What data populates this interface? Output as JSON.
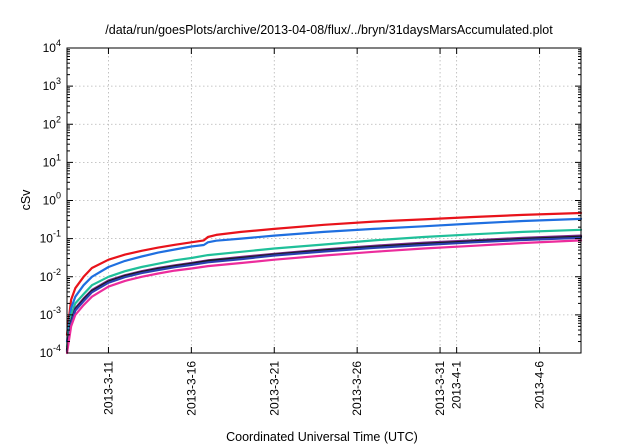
{
  "chart_data": {
    "type": "line",
    "title": "/data/run/goesPlots/archive/2013-04-08/flux/../bryn/31daysMarsAccumulated.plot",
    "xlabel": "Coordinated Universal Time (UTC)",
    "ylabel": "cSv",
    "yscale": "log",
    "ylim": [
      0.0001,
      10000
    ],
    "xlim": [
      "2013-03-08T12:00",
      "2013-04-08T12:00"
    ],
    "grid": true,
    "legend": "none",
    "y_ticks": [
      {
        "base": "10",
        "exp": "-4",
        "value": 0.0001
      },
      {
        "base": "10",
        "exp": "-3",
        "value": 0.001
      },
      {
        "base": "10",
        "exp": "-2",
        "value": 0.01
      },
      {
        "base": "10",
        "exp": "-1",
        "value": 0.1
      },
      {
        "base": "10",
        "exp": "0",
        "value": 1
      },
      {
        "base": "10",
        "exp": "1",
        "value": 10
      },
      {
        "base": "10",
        "exp": "2",
        "value": 100
      },
      {
        "base": "10",
        "exp": "3",
        "value": 1000
      },
      {
        "base": "10",
        "exp": "4",
        "value": 10000
      }
    ],
    "x_ticks": [
      {
        "label": "2013-3-11",
        "date": "2013-03-11"
      },
      {
        "label": "2013-3-16",
        "date": "2013-03-16"
      },
      {
        "label": "2013-3-21",
        "date": "2013-03-21"
      },
      {
        "label": "2013-3-26",
        "date": "2013-03-26"
      },
      {
        "label": "2013-3-31",
        "date": "2013-03-31"
      },
      {
        "label": "2013-4-1",
        "date": "2013-04-01"
      },
      {
        "label": "2013-4-6",
        "date": "2013-04-06"
      }
    ],
    "series": [
      {
        "color": "#e8131b",
        "points": [
          [
            "2013-03-08T12:00",
            0.0003
          ],
          [
            "2013-03-08T18:00",
            0.0025
          ],
          [
            "2013-03-09T00:00",
            0.005
          ],
          [
            "2013-03-09T12:00",
            0.01
          ],
          [
            "2013-03-10T00:00",
            0.017
          ],
          [
            "2013-03-11T00:00",
            0.028
          ],
          [
            "2013-03-12T00:00",
            0.038
          ],
          [
            "2013-03-13T00:00",
            0.048
          ],
          [
            "2013-03-14T00:00",
            0.058
          ],
          [
            "2013-03-15T00:00",
            0.069
          ],
          [
            "2013-03-16T00:00",
            0.08
          ],
          [
            "2013-03-16T18:00",
            0.09
          ],
          [
            "2013-03-17T00:00",
            0.11
          ],
          [
            "2013-03-17T12:00",
            0.125
          ],
          [
            "2013-03-19T00:00",
            0.15
          ],
          [
            "2013-03-21T00:00",
            0.18
          ],
          [
            "2013-03-24T00:00",
            0.23
          ],
          [
            "2013-03-27T00:00",
            0.28
          ],
          [
            "2013-03-30T00:00",
            0.32
          ],
          [
            "2013-04-02T00:00",
            0.37
          ],
          [
            "2013-04-05T00:00",
            0.42
          ],
          [
            "2013-04-08T12:00",
            0.47
          ]
        ]
      },
      {
        "color": "#1f6fe0",
        "points": [
          [
            "2013-03-08T12:00",
            0.0002
          ],
          [
            "2013-03-08T18:00",
            0.0015
          ],
          [
            "2013-03-09T00:00",
            0.003
          ],
          [
            "2013-03-09T12:00",
            0.006
          ],
          [
            "2013-03-10T00:00",
            0.01
          ],
          [
            "2013-03-11T00:00",
            0.018
          ],
          [
            "2013-03-12T00:00",
            0.026
          ],
          [
            "2013-03-13T00:00",
            0.034
          ],
          [
            "2013-03-14T00:00",
            0.043
          ],
          [
            "2013-03-15T00:00",
            0.052
          ],
          [
            "2013-03-16T00:00",
            0.062
          ],
          [
            "2013-03-16T18:00",
            0.068
          ],
          [
            "2013-03-17T00:00",
            0.08
          ],
          [
            "2013-03-17T12:00",
            0.088
          ],
          [
            "2013-03-19T00:00",
            0.1
          ],
          [
            "2013-03-21T00:00",
            0.12
          ],
          [
            "2013-03-24T00:00",
            0.15
          ],
          [
            "2013-03-27T00:00",
            0.18
          ],
          [
            "2013-03-30T00:00",
            0.21
          ],
          [
            "2013-04-02T00:00",
            0.25
          ],
          [
            "2013-04-05T00:00",
            0.29
          ],
          [
            "2013-04-08T12:00",
            0.33
          ]
        ]
      },
      {
        "color": "#20c09a",
        "points": [
          [
            "2013-03-08T12:00",
            0.00015
          ],
          [
            "2013-03-08T18:00",
            0.001
          ],
          [
            "2013-03-09T00:00",
            0.002
          ],
          [
            "2013-03-09T12:00",
            0.0035
          ],
          [
            "2013-03-10T00:00",
            0.006
          ],
          [
            "2013-03-11T00:00",
            0.01
          ],
          [
            "2013-03-12T00:00",
            0.014
          ],
          [
            "2013-03-13T00:00",
            0.018
          ],
          [
            "2013-03-14T00:00",
            0.022
          ],
          [
            "2013-03-15T00:00",
            0.027
          ],
          [
            "2013-03-16T00:00",
            0.031
          ],
          [
            "2013-03-17T00:00",
            0.037
          ],
          [
            "2013-03-19T00:00",
            0.045
          ],
          [
            "2013-03-21T00:00",
            0.055
          ],
          [
            "2013-03-24T00:00",
            0.07
          ],
          [
            "2013-03-27T00:00",
            0.09
          ],
          [
            "2013-03-30T00:00",
            0.11
          ],
          [
            "2013-04-02T00:00",
            0.13
          ],
          [
            "2013-04-05T00:00",
            0.15
          ],
          [
            "2013-04-08T12:00",
            0.17
          ]
        ]
      },
      {
        "color": "#7a2a8c",
        "points": [
          [
            "2013-03-08T12:00",
            0.00012
          ],
          [
            "2013-03-08T18:00",
            0.0007
          ],
          [
            "2013-03-09T00:00",
            0.0015
          ],
          [
            "2013-03-09T12:00",
            0.0027
          ],
          [
            "2013-03-10T00:00",
            0.0045
          ],
          [
            "2013-03-11T00:00",
            0.008
          ],
          [
            "2013-03-12T00:00",
            0.011
          ],
          [
            "2013-03-13T00:00",
            0.014
          ],
          [
            "2013-03-14T00:00",
            0.017
          ],
          [
            "2013-03-15T00:00",
            0.02
          ],
          [
            "2013-03-16T00:00",
            0.023
          ],
          [
            "2013-03-17T00:00",
            0.027
          ],
          [
            "2013-03-19T00:00",
            0.033
          ],
          [
            "2013-03-21T00:00",
            0.04
          ],
          [
            "2013-03-24T00:00",
            0.052
          ],
          [
            "2013-03-27T00:00",
            0.065
          ],
          [
            "2013-03-30T00:00",
            0.078
          ],
          [
            "2013-04-02T00:00",
            0.09
          ],
          [
            "2013-04-05T00:00",
            0.105
          ],
          [
            "2013-04-08T12:00",
            0.12
          ]
        ]
      },
      {
        "color": "#1a1a1a",
        "points": [
          [
            "2013-03-08T12:00",
            0.00012
          ],
          [
            "2013-03-08T18:00",
            0.00065
          ],
          [
            "2013-03-09T00:00",
            0.0014
          ],
          [
            "2013-03-09T12:00",
            0.0025
          ],
          [
            "2013-03-10T00:00",
            0.0042
          ],
          [
            "2013-03-11T00:00",
            0.0075
          ],
          [
            "2013-03-12T00:00",
            0.0105
          ],
          [
            "2013-03-13T00:00",
            0.0133
          ],
          [
            "2013-03-14T00:00",
            0.0162
          ],
          [
            "2013-03-15T00:00",
            0.019
          ],
          [
            "2013-03-16T00:00",
            0.022
          ],
          [
            "2013-03-17T00:00",
            0.026
          ],
          [
            "2013-03-19T00:00",
            0.031
          ],
          [
            "2013-03-21T00:00",
            0.038
          ],
          [
            "2013-03-24T00:00",
            0.049
          ],
          [
            "2013-03-27T00:00",
            0.061
          ],
          [
            "2013-03-30T00:00",
            0.073
          ],
          [
            "2013-04-02T00:00",
            0.085
          ],
          [
            "2013-04-05T00:00",
            0.098
          ],
          [
            "2013-04-08T12:00",
            0.112
          ]
        ]
      },
      {
        "color": "#2b3fb0",
        "points": [
          [
            "2013-03-08T12:00",
            0.00011
          ],
          [
            "2013-03-08T18:00",
            0.0006
          ],
          [
            "2013-03-09T00:00",
            0.0013
          ],
          [
            "2013-03-09T12:00",
            0.0023
          ],
          [
            "2013-03-10T00:00",
            0.0039
          ],
          [
            "2013-03-11T00:00",
            0.007
          ],
          [
            "2013-03-12T00:00",
            0.0098
          ],
          [
            "2013-03-13T00:00",
            0.0125
          ],
          [
            "2013-03-14T00:00",
            0.015
          ],
          [
            "2013-03-15T00:00",
            0.0178
          ],
          [
            "2013-03-16T00:00",
            0.0205
          ],
          [
            "2013-03-17T00:00",
            0.024
          ],
          [
            "2013-03-19T00:00",
            0.029
          ],
          [
            "2013-03-21T00:00",
            0.036
          ],
          [
            "2013-03-24T00:00",
            0.046
          ],
          [
            "2013-03-27T00:00",
            0.057
          ],
          [
            "2013-03-30T00:00",
            0.068
          ],
          [
            "2013-04-02T00:00",
            0.08
          ],
          [
            "2013-04-05T00:00",
            0.092
          ],
          [
            "2013-04-08T12:00",
            0.105
          ]
        ]
      },
      {
        "color": "#ec2c9c",
        "points": [
          [
            "2013-03-08T12:00",
            0.0001
          ],
          [
            "2013-03-08T18:00",
            0.0005
          ],
          [
            "2013-03-09T00:00",
            0.001
          ],
          [
            "2013-03-09T12:00",
            0.0018
          ],
          [
            "2013-03-10T00:00",
            0.003
          ],
          [
            "2013-03-11T00:00",
            0.0055
          ],
          [
            "2013-03-12T00:00",
            0.0078
          ],
          [
            "2013-03-13T00:00",
            0.01
          ],
          [
            "2013-03-14T00:00",
            0.0122
          ],
          [
            "2013-03-15T00:00",
            0.0145
          ],
          [
            "2013-03-16T00:00",
            0.0165
          ],
          [
            "2013-03-17T00:00",
            0.019
          ],
          [
            "2013-03-19T00:00",
            0.023
          ],
          [
            "2013-03-21T00:00",
            0.028
          ],
          [
            "2013-03-24T00:00",
            0.036
          ],
          [
            "2013-03-27T00:00",
            0.045
          ],
          [
            "2013-03-30T00:00",
            0.055
          ],
          [
            "2013-04-02T00:00",
            0.065
          ],
          [
            "2013-04-05T00:00",
            0.077
          ],
          [
            "2013-04-08T12:00",
            0.09
          ]
        ]
      }
    ]
  }
}
